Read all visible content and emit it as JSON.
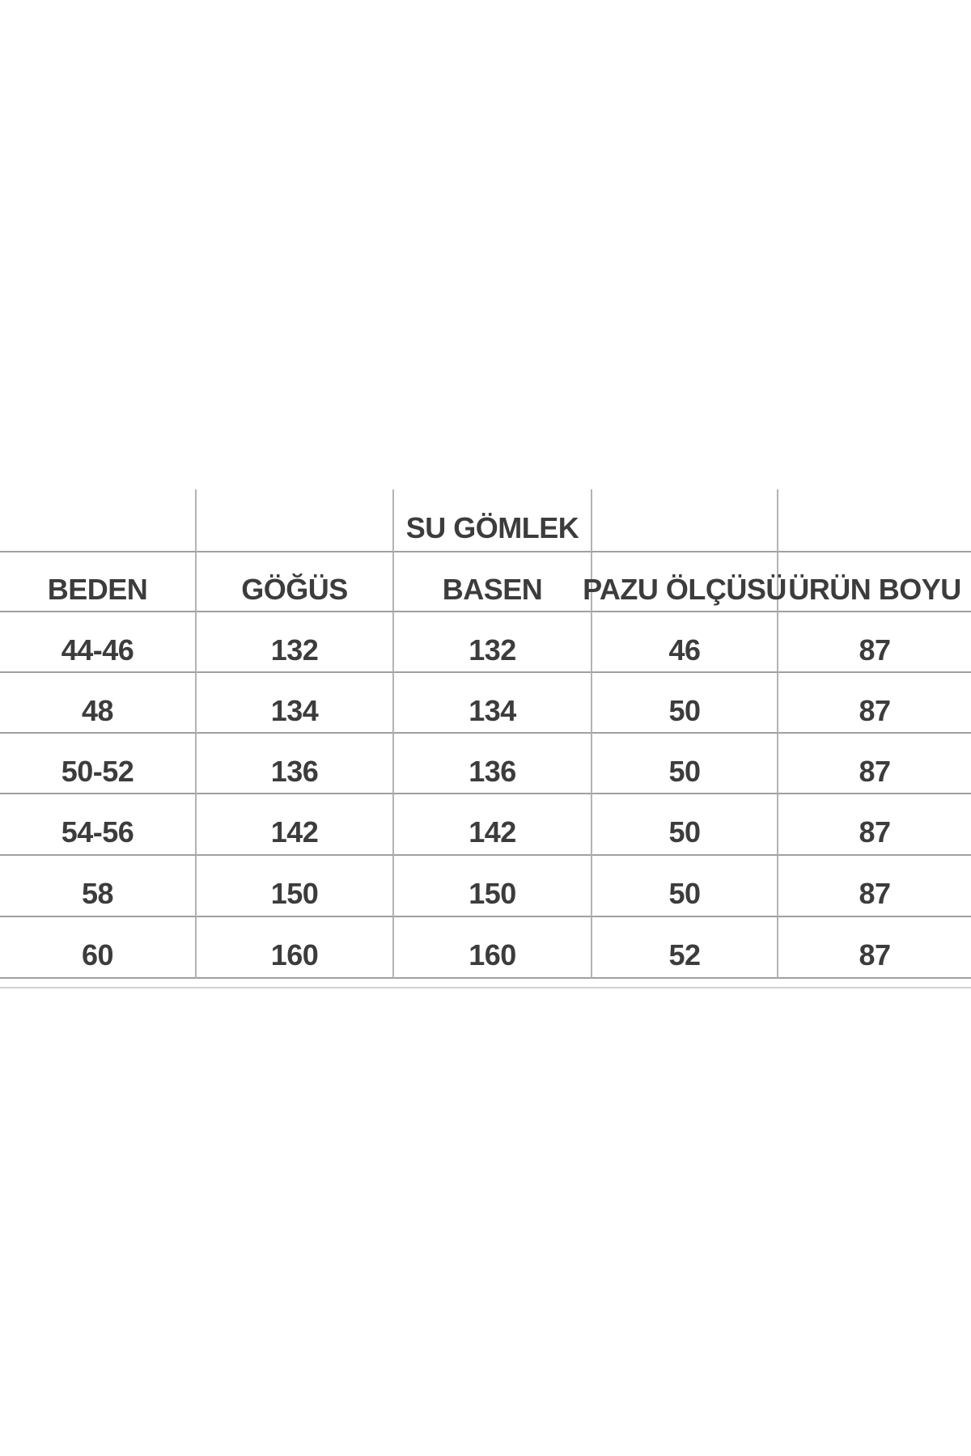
{
  "chart_data": {
    "type": "table",
    "title": "SU GÖMLEK",
    "title_note": "spanning label shown above the BASEN column",
    "columns": [
      "BEDEN",
      "GÖĞÜS",
      "BASEN",
      "PAZU ÖLÇÜSÜ",
      "ÜRÜN BOYU"
    ],
    "rows": [
      [
        "44-46",
        "132",
        "132",
        "46",
        "87"
      ],
      [
        "48",
        "134",
        "134",
        "50",
        "87"
      ],
      [
        "50-52",
        "136",
        "136",
        "50",
        "87"
      ],
      [
        "54-56",
        "142",
        "142",
        "50",
        "87"
      ],
      [
        "58",
        "150",
        "150",
        "50",
        "87"
      ],
      [
        "60",
        "160",
        "160",
        "52",
        "87"
      ]
    ],
    "layout": "grid table, no outer left/right/top border, light gray rules, bold dark text on white"
  },
  "colors": {
    "grid_line": "#a0a0a0",
    "grid_line_v": "#b3b3b3",
    "text": "#3c3c3c",
    "bg": "#ffffff",
    "faint_line": "#d2d2d2"
  }
}
